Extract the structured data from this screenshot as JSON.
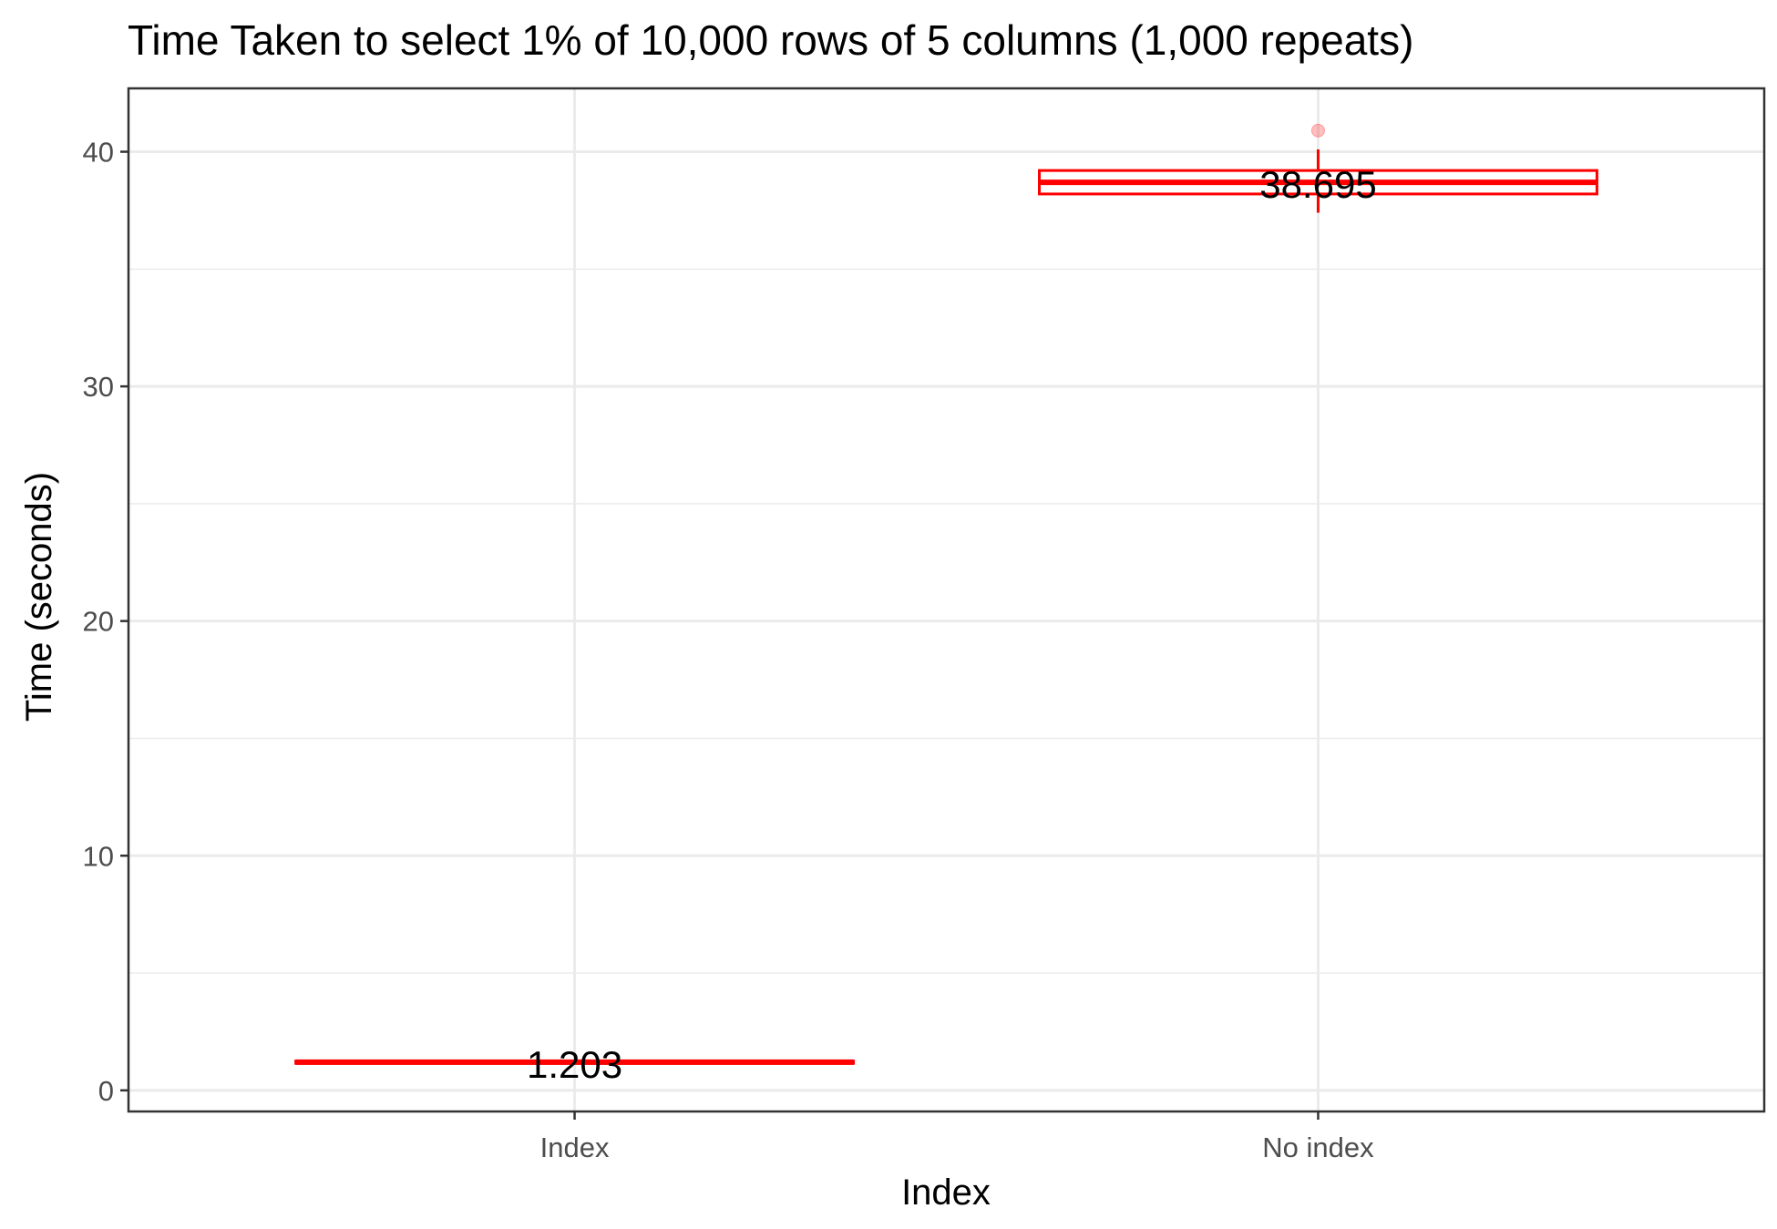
{
  "chart_data": {
    "type": "boxplot",
    "title": "Time Taken to select 1% of 10,000 rows of 5 columns (1,000 repeats)",
    "xlabel": "Index",
    "ylabel": "Time (seconds)",
    "categories": [
      "Index",
      "No index"
    ],
    "ylim": [
      -0.9,
      42.7
    ],
    "yticks": [
      0,
      10,
      20,
      30,
      40
    ],
    "grid": true,
    "legend": "none",
    "series_color": "#ff0000",
    "boxes": [
      {
        "category": "Index",
        "min": 1.1,
        "q1": 1.15,
        "median": 1.203,
        "q3": 1.25,
        "max": 1.3,
        "outliers": [],
        "label": "1.203"
      },
      {
        "category": "No index",
        "min": 37.4,
        "q1": 38.2,
        "median": 38.695,
        "q3": 39.2,
        "max": 40.1,
        "outliers": [
          40.9
        ],
        "label": "38.695"
      }
    ]
  }
}
